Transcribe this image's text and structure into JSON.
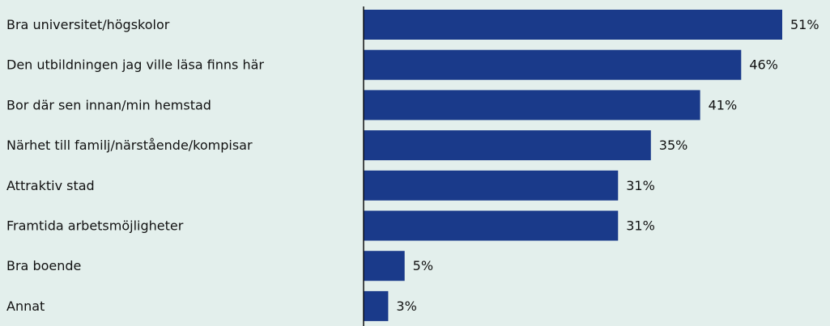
{
  "chart_data": {
    "type": "bar",
    "orientation": "horizontal",
    "categories": [
      "Bra universitet/högskolor",
      "Den utbildningen jag ville läsa finns här",
      "Bor där sen innan/min hemstad",
      "Närhet till familj/närstående/kompisar",
      "Attraktiv stad",
      "Framtida arbetsmöjligheter",
      "Bra boende",
      "Annat"
    ],
    "values": [
      51,
      46,
      41,
      35,
      31,
      31,
      5,
      3
    ],
    "value_labels": [
      "51%",
      "46%",
      "41%",
      "35%",
      "31%",
      "31%",
      "5%",
      "3%"
    ],
    "unit": "%",
    "xlim": [
      0,
      51
    ],
    "grid": false,
    "legend": "none",
    "colors": {
      "bar": "#1a3a8a",
      "background": "#e3efec",
      "text": "#111111",
      "axis": "#111111"
    }
  }
}
